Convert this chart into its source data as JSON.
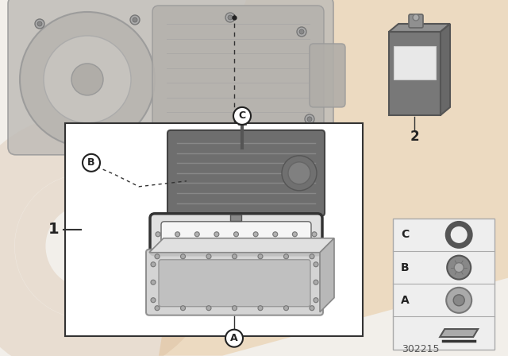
{
  "bg_color": "#f2efea",
  "part_number": "302215",
  "label_1": "1",
  "label_2": "2",
  "label_A": "A",
  "label_B": "B",
  "label_C": "C",
  "watermark_color_outer": "#c8a07a",
  "watermark_color_inner": "#c8a07a",
  "watermark_alpha": 0.22,
  "peach_splash_color": "#e8c9a0",
  "peach_splash_alpha": 0.55,
  "line_color": "#222222",
  "box_facecolor": "#ffffff",
  "box_edgecolor": "#333333",
  "trans_color": "#c0bdb8",
  "trans_edge": "#999999",
  "filter_body": "#6e6e6e",
  "filter_rib": "#808080",
  "filter_light": "#888888",
  "gasket_color": "#444444",
  "pan_body": "#c8c8c8",
  "pan_inner": "#d8d8d8",
  "pan_edge": "#888888",
  "fluid_body": "#7a7a7a",
  "fluid_edge": "#555555",
  "fluid_top": "#909090",
  "fluid_label": "#e0e0e0",
  "legend_bg": "#eeeeee",
  "legend_edge": "#aaaaaa",
  "ring_color": "#666666",
  "bolt_dark": "#777777",
  "bolt_light": "#aaaaaa"
}
